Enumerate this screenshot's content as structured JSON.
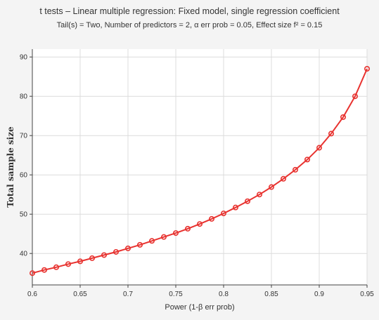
{
  "chart_data": {
    "type": "line",
    "title": "t tests – Linear multiple regression: Fixed model, single regression coefficient",
    "subtitle": "Tail(s) = Two, Number of predictors = 2, α err prob = 0.05, Effect size f² = 0.15",
    "xlabel": "Power (1-β err prob)",
    "ylabel": "Total sample size",
    "xlim": [
      0.6,
      0.95
    ],
    "ylim": [
      32,
      92
    ],
    "xticks": [
      "0.6",
      "0.65",
      "0.7",
      "0.75",
      "0.8",
      "0.85",
      "0.9",
      "0.95"
    ],
    "yticks": [
      "40",
      "50",
      "60",
      "70",
      "80",
      "90"
    ],
    "grid": true,
    "colors": {
      "line": "#e8322f",
      "marker": "#e8322f",
      "grid": "#dcdcdc",
      "background": "#f4f4f4",
      "plot_bg": "#ffffff"
    },
    "series": [
      {
        "x": [
          0.6,
          0.6125,
          0.625,
          0.6375,
          0.65,
          0.6625,
          0.675,
          0.6875,
          0.7,
          0.7125,
          0.725,
          0.7375,
          0.75,
          0.7625,
          0.775,
          0.7875,
          0.8,
          0.8125,
          0.825,
          0.8375,
          0.85,
          0.8625,
          0.875,
          0.8875,
          0.9,
          0.9125,
          0.925,
          0.9375,
          0.95
        ],
        "values": [
          35,
          35.8,
          36.5,
          37.3,
          38,
          38.8,
          39.6,
          40.4,
          41.3,
          42.2,
          43.2,
          44.2,
          45.2,
          46.3,
          47.5,
          48.8,
          50.2,
          51.7,
          53.3,
          55,
          56.9,
          59,
          61.3,
          63.9,
          66.9,
          70.5,
          74.7,
          80,
          87
        ]
      }
    ]
  }
}
